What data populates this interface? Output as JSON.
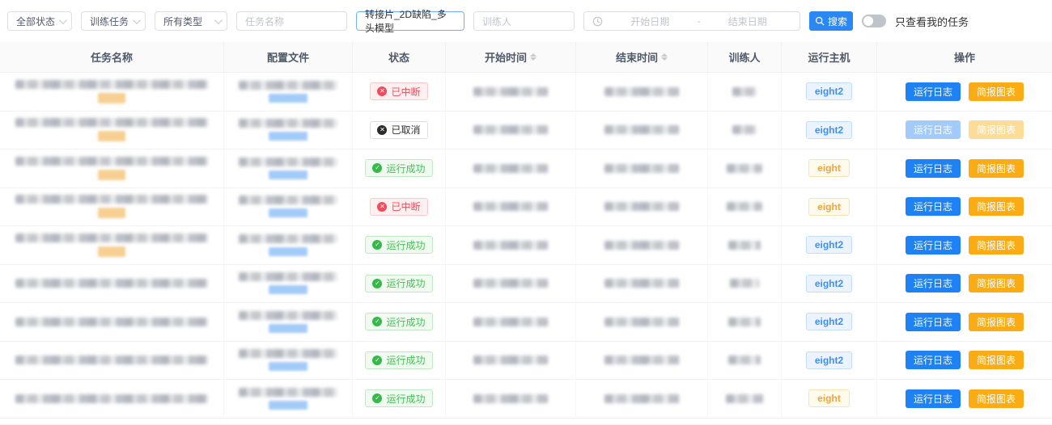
{
  "filters": {
    "status_select": "全部状态",
    "task_type_select": "训练任务",
    "category_select": "所有类型",
    "task_name_placeholder": "任务名称",
    "search_value": "转接片_2D缺陷_多头模型",
    "trainer_placeholder": "训练人",
    "start_date_placeholder": "开始日期",
    "date_separator": "-",
    "end_date_placeholder": "结束日期",
    "search_button_label": "搜索",
    "toggle_label": "只查看我的任务",
    "toggle_state": "off"
  },
  "table": {
    "columns": [
      "任务名称",
      "配置文件",
      "状态",
      "开始时间",
      "结束时间",
      "训练人",
      "运行主机",
      "操作"
    ],
    "sortable_columns": [
      "开始时间",
      "结束时间"
    ],
    "status_labels": {
      "interrupted": "已中断",
      "cancelled": "已取消",
      "success": "运行成功"
    },
    "status_icons": {
      "interrupted": "✕",
      "cancelled": "✕",
      "success": "✓"
    },
    "action_labels": {
      "log": "运行日志",
      "chart": "简报图表"
    },
    "rows": [
      {
        "status": "interrupted",
        "host": "eight2",
        "has_tag": true,
        "actions_disabled": false,
        "content_redacted": true
      },
      {
        "status": "cancelled",
        "host": "eight2",
        "has_tag": true,
        "actions_disabled": true,
        "content_redacted": true
      },
      {
        "status": "success",
        "host": "eight",
        "has_tag": true,
        "actions_disabled": false,
        "content_redacted": true
      },
      {
        "status": "interrupted",
        "host": "eight",
        "has_tag": true,
        "actions_disabled": false,
        "content_redacted": true
      },
      {
        "status": "success",
        "host": "eight2",
        "has_tag": true,
        "actions_disabled": false,
        "content_redacted": true
      },
      {
        "status": "success",
        "host": "eight2",
        "has_tag": false,
        "actions_disabled": false,
        "content_redacted": true
      },
      {
        "status": "success",
        "host": "eight2",
        "has_tag": false,
        "actions_disabled": false,
        "content_redacted": true
      },
      {
        "status": "success",
        "host": "eight2",
        "has_tag": false,
        "actions_disabled": false,
        "content_redacted": true
      },
      {
        "status": "success",
        "host": "eight",
        "has_tag": false,
        "actions_disabled": false,
        "content_redacted": true
      }
    ]
  },
  "colors": {
    "accent_blue": "#1e82f5",
    "accent_orange": "#fbac14",
    "status_interrupted": "#f24b5b",
    "status_success": "#47be57",
    "host_eight2": "#3e8ef7",
    "host_eight": "#f2a33c",
    "header_bg": "#fafafa"
  }
}
